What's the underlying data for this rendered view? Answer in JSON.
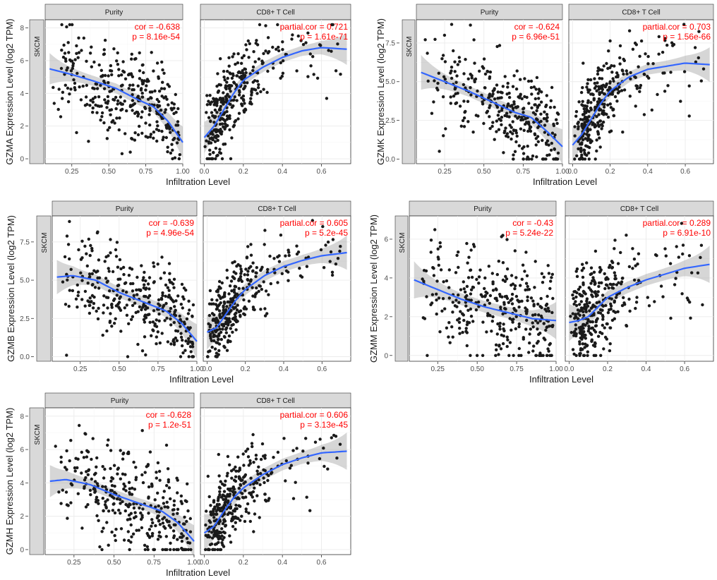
{
  "style": {
    "point_color": "#1a1a1a",
    "line_color": "#3366ff",
    "band_color": "#999999",
    "strip_color": "#d9d9d9",
    "panel_bg": "#ffffff",
    "grid_color": "#ebebeb",
    "stat_color": "#ff0000"
  },
  "chart_data": [
    {
      "type": "scatter",
      "gene": "GZMA",
      "ylabel": "GZMA Expression Level (log2 TPM)",
      "xlabel": "Infiltration Level",
      "row_label": "SKCM",
      "ylim": [
        -0.3,
        8.5
      ],
      "yticks": [
        0,
        2,
        4,
        6,
        8
      ],
      "ytick_labels": [
        "0",
        "2",
        "4",
        "6",
        "8"
      ],
      "panels": [
        {
          "strip": "Purity",
          "xlim": [
            0.07,
            1.0
          ],
          "xticks": [
            0.25,
            0.5,
            0.75,
            1.0
          ],
          "xtick_labels": [
            "0.25",
            "0.50",
            "0.75",
            "1.00"
          ],
          "stat_lines": [
            "cor = -0.638",
            "p = 8.16e-54"
          ],
          "trend": {
            "x": [
              0.1,
              0.25,
              0.4,
              0.55,
              0.7,
              0.8,
              0.9,
              1.0
            ],
            "y": [
              5.5,
              5.15,
              4.75,
              4.3,
              3.6,
              3.2,
              2.3,
              1.0
            ]
          },
          "band_halfwidth": 0.3,
          "points_seed": 11,
          "points_count": 330
        },
        {
          "strip": "CD8+ T Cell",
          "xlim": [
            -0.02,
            0.75
          ],
          "xticks": [
            0.0,
            0.2,
            0.4,
            0.6
          ],
          "xtick_labels": [
            "0.0",
            "0.2",
            "0.4",
            "0.6"
          ],
          "stat_lines": [
            "partial.cor = 0.721",
            "p = 1.61e-71"
          ],
          "trend": {
            "x": [
              0.0,
              0.05,
              0.1,
              0.15,
              0.2,
              0.3,
              0.4,
              0.5,
              0.6,
              0.73
            ],
            "y": [
              1.3,
              2.0,
              3.0,
              4.0,
              4.8,
              5.6,
              6.2,
              6.6,
              6.8,
              6.7
            ]
          },
          "band_halfwidth": 0.3,
          "points_seed": 12,
          "points_count": 330
        }
      ]
    },
    {
      "type": "scatter",
      "gene": "GZMK",
      "ylabel": "GZMK Expression Level (log2 TPM)",
      "xlabel": "Infiltration Level",
      "row_label": "SKCM",
      "ylim": [
        -0.3,
        9.0
      ],
      "yticks": [
        0,
        2.5,
        5.0,
        7.5
      ],
      "ytick_labels": [
        "0.0",
        "2.5",
        "5.0",
        "7.5"
      ],
      "panels": [
        {
          "strip": "Purity",
          "xlim": [
            0.07,
            1.0
          ],
          "xticks": [
            0.25,
            0.5,
            0.75,
            1.0
          ],
          "xtick_labels": [
            "0.25",
            "0.50",
            "0.75",
            "1.00"
          ],
          "stat_lines": [
            "cor = -0.624",
            "p = 6.96e-51"
          ],
          "trend": {
            "x": [
              0.1,
              0.25,
              0.4,
              0.55,
              0.7,
              0.8,
              0.9,
              1.0
            ],
            "y": [
              5.6,
              5.0,
              4.4,
              3.7,
              3.0,
              2.7,
              1.8,
              0.8
            ]
          },
          "band_halfwidth": 0.35,
          "points_seed": 21,
          "points_count": 330
        },
        {
          "strip": "CD8+ T Cell",
          "xlim": [
            -0.02,
            0.75
          ],
          "xticks": [
            0.0,
            0.2,
            0.4,
            0.6
          ],
          "xtick_labels": [
            "0.0",
            "0.2",
            "0.4",
            "0.6"
          ],
          "stat_lines": [
            "partial.cor = 0.703",
            "p = 1.56e-66"
          ],
          "trend": {
            "x": [
              0.0,
              0.05,
              0.1,
              0.15,
              0.2,
              0.3,
              0.4,
              0.5,
              0.6,
              0.73
            ],
            "y": [
              0.9,
              1.6,
              2.6,
              3.6,
              4.4,
              5.3,
              5.8,
              6.0,
              6.2,
              6.1
            ]
          },
          "band_halfwidth": 0.35,
          "points_seed": 22,
          "points_count": 330
        }
      ]
    },
    {
      "type": "scatter",
      "gene": "GZMB",
      "ylabel": "GZMB Expression Level (log2 TPM)",
      "xlabel": "Infiltration Level",
      "row_label": "SKCM",
      "ylim": [
        -0.3,
        9.2
      ],
      "yticks": [
        0,
        2.5,
        5.0,
        7.5
      ],
      "ytick_labels": [
        "0.0",
        "2.5",
        "5.0",
        "7.5"
      ],
      "panels": [
        {
          "strip": "Purity",
          "xlim": [
            0.07,
            1.0
          ],
          "xticks": [
            0.25,
            0.5,
            0.75,
            1.0
          ],
          "xtick_labels": [
            "0.25",
            "0.50",
            "0.75",
            "1.00"
          ],
          "stat_lines": [
            "cor = -0.639",
            "p = 4.96e-54"
          ],
          "trend": {
            "x": [
              0.1,
              0.2,
              0.35,
              0.5,
              0.65,
              0.8,
              0.9,
              1.0
            ],
            "y": [
              5.2,
              5.3,
              5.0,
              4.2,
              3.6,
              3.0,
              2.2,
              1.0
            ]
          },
          "band_halfwidth": 0.35,
          "points_seed": 31,
          "points_count": 330
        },
        {
          "strip": "CD8+ T Cell",
          "xlim": [
            -0.02,
            0.75
          ],
          "xticks": [
            0.0,
            0.2,
            0.4,
            0.6
          ],
          "xtick_labels": [
            "0.0",
            "0.2",
            "0.4",
            "0.6"
          ],
          "stat_lines": [
            "partial.cor = 0.605",
            "p = 5.2e-45"
          ],
          "trend": {
            "x": [
              0.0,
              0.05,
              0.1,
              0.15,
              0.2,
              0.3,
              0.4,
              0.5,
              0.6,
              0.73
            ],
            "y": [
              1.6,
              1.9,
              2.8,
              3.7,
              4.4,
              5.3,
              5.9,
              6.3,
              6.6,
              6.8
            ]
          },
          "band_halfwidth": 0.35,
          "points_seed": 32,
          "points_count": 330
        }
      ]
    },
    {
      "type": "scatter",
      "gene": "GZMM",
      "ylabel": "GZMM Expression Level (log2 TPM)",
      "xlabel": "Infiltration Level",
      "row_label": "SKCM",
      "ylim": [
        -0.3,
        7.2
      ],
      "yticks": [
        0,
        2,
        4,
        6
      ],
      "ytick_labels": [
        "0",
        "2",
        "4",
        "6"
      ],
      "panels": [
        {
          "strip": "Purity",
          "xlim": [
            0.07,
            1.0
          ],
          "xticks": [
            0.25,
            0.5,
            0.75,
            1.0
          ],
          "xtick_labels": [
            "0.25",
            "0.50",
            "0.75",
            "1.00"
          ],
          "stat_lines": [
            "cor = -0.43",
            "p = 5.24e-22"
          ],
          "trend": {
            "x": [
              0.1,
              0.25,
              0.4,
              0.55,
              0.7,
              0.85,
              1.0
            ],
            "y": [
              3.9,
              3.4,
              2.9,
              2.5,
              2.2,
              1.9,
              1.8
            ]
          },
          "band_halfwidth": 0.3,
          "points_seed": 41,
          "points_count": 330
        },
        {
          "strip": "CD8+ T Cell",
          "xlim": [
            -0.02,
            0.75
          ],
          "xticks": [
            0.0,
            0.2,
            0.4,
            0.6
          ],
          "xtick_labels": [
            "0.0",
            "0.2",
            "0.4",
            "0.6"
          ],
          "stat_lines": [
            "partial.cor = 0.289",
            "p = 6.91e-10"
          ],
          "trend": {
            "x": [
              0.0,
              0.05,
              0.1,
              0.15,
              0.2,
              0.3,
              0.4,
              0.5,
              0.6,
              0.73
            ],
            "y": [
              1.7,
              1.8,
              2.0,
              2.5,
              3.0,
              3.5,
              3.9,
              4.2,
              4.5,
              4.7
            ]
          },
          "band_halfwidth": 0.3,
          "points_seed": 42,
          "points_count": 330
        }
      ]
    },
    {
      "type": "scatter",
      "gene": "GZMH",
      "ylabel": "GZMH Expression Level (log2 TPM)",
      "xlabel": "Infiltration Level",
      "row_label": "SKCM",
      "ylim": [
        -0.3,
        8.5
      ],
      "yticks": [
        0,
        2,
        4,
        6,
        8
      ],
      "ytick_labels": [
        "0",
        "2",
        "4",
        "6",
        "8"
      ],
      "panels": [
        {
          "strip": "Purity",
          "xlim": [
            0.07,
            1.0
          ],
          "xticks": [
            0.25,
            0.5,
            0.75,
            1.0
          ],
          "xtick_labels": [
            "0.25",
            "0.50",
            "0.75",
            "1.00"
          ],
          "stat_lines": [
            "cor = -0.628",
            "p = 1.2e-51"
          ],
          "trend": {
            "x": [
              0.1,
              0.2,
              0.35,
              0.5,
              0.65,
              0.8,
              0.9,
              1.0
            ],
            "y": [
              4.1,
              4.2,
              3.9,
              3.3,
              2.8,
              2.3,
              1.6,
              0.5
            ]
          },
          "band_halfwidth": 0.3,
          "points_seed": 51,
          "points_count": 330
        },
        {
          "strip": "CD8+ T Cell",
          "xlim": [
            -0.02,
            0.75
          ],
          "xticks": [
            0.0,
            0.2,
            0.4,
            0.6
          ],
          "xtick_labels": [
            "0.0",
            "0.2",
            "0.4",
            "0.6"
          ],
          "stat_lines": [
            "partial.cor = 0.606",
            "p = 3.13e-45"
          ],
          "trend": {
            "x": [
              0.0,
              0.05,
              0.1,
              0.15,
              0.2,
              0.3,
              0.4,
              0.5,
              0.6,
              0.73
            ],
            "y": [
              1.0,
              1.4,
              2.3,
              3.1,
              3.7,
              4.5,
              5.1,
              5.5,
              5.8,
              5.9
            ]
          },
          "band_halfwidth": 0.35,
          "points_seed": 52,
          "points_count": 330
        }
      ]
    }
  ]
}
